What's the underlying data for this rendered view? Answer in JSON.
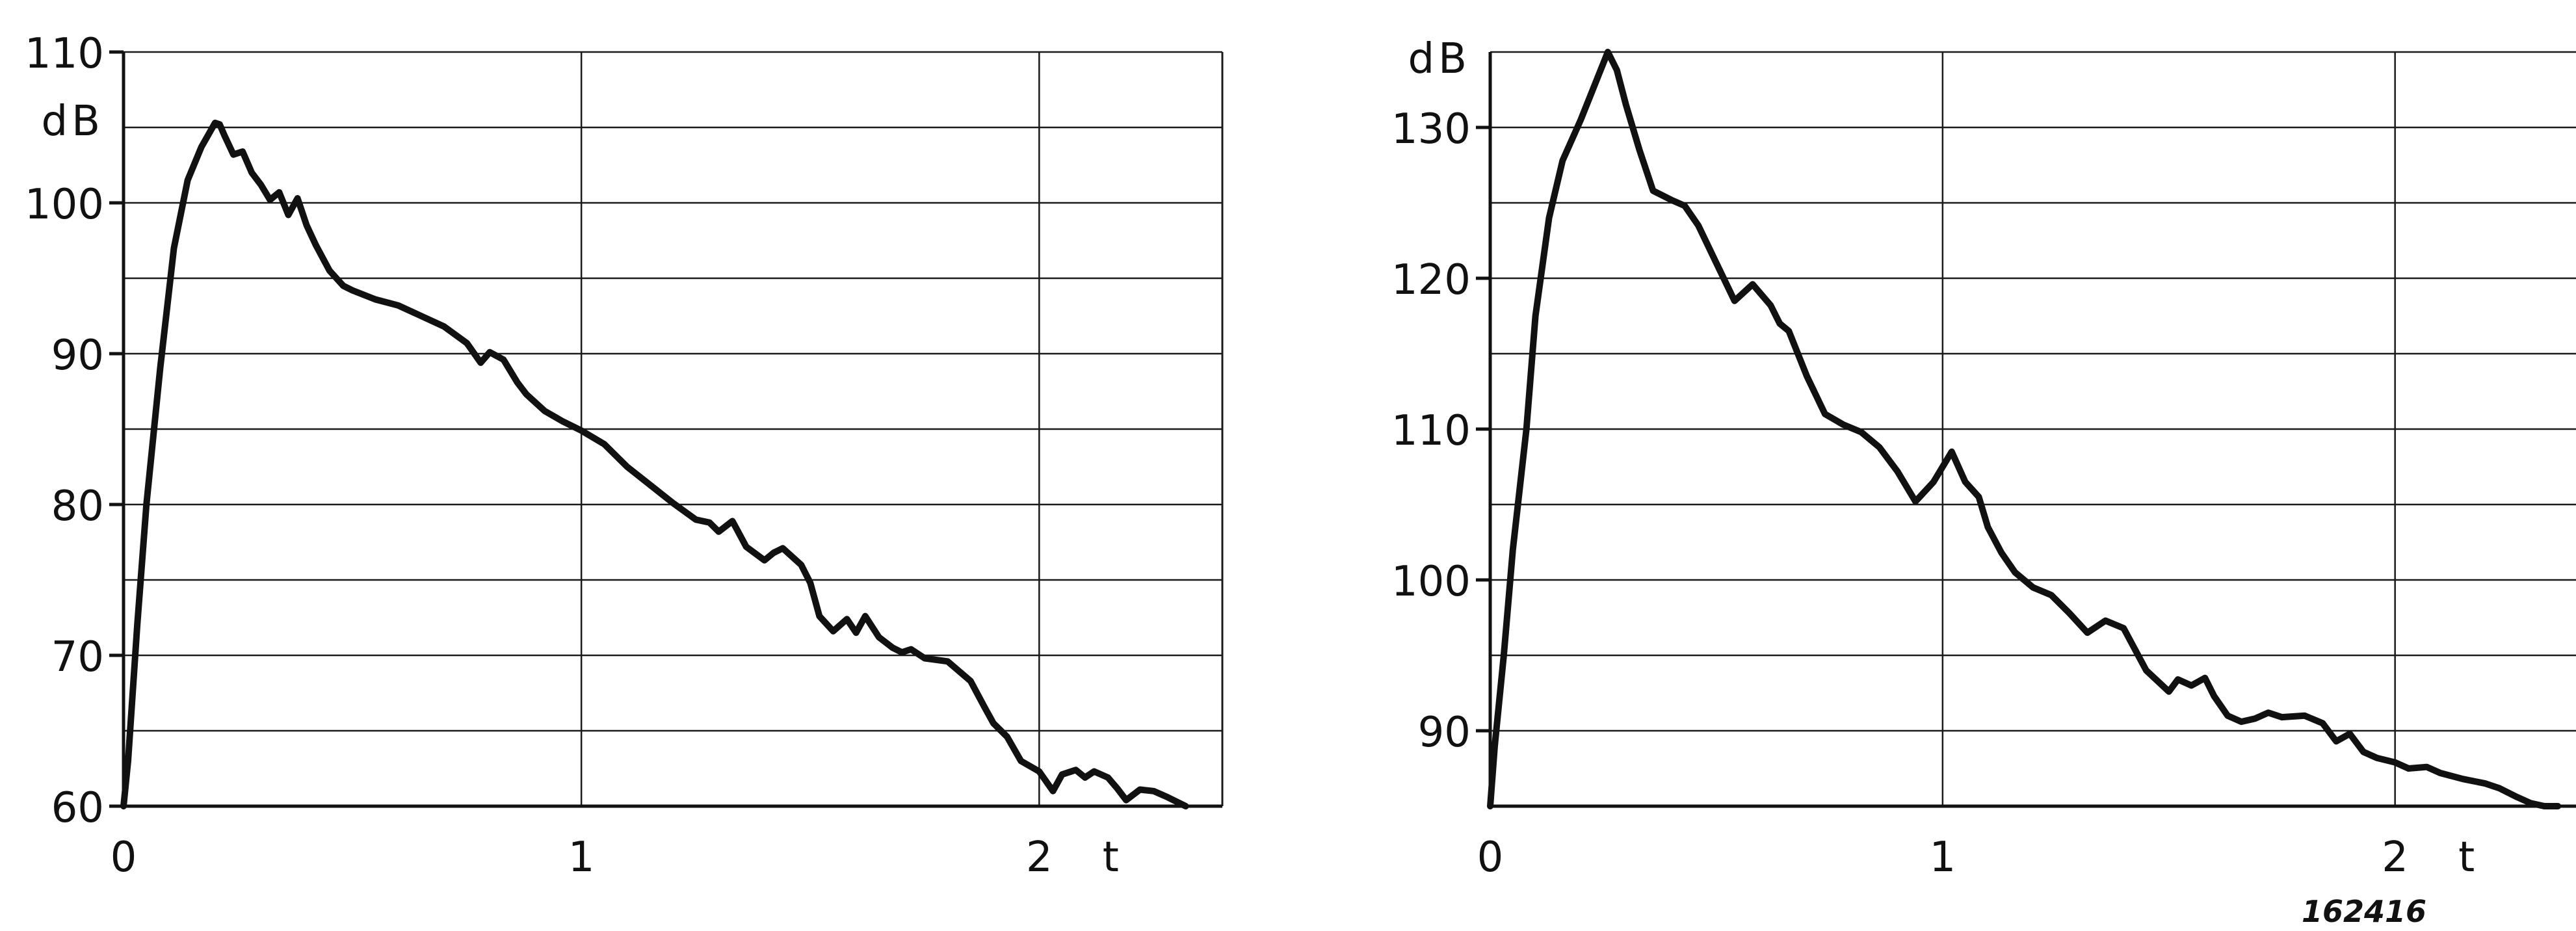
{
  "catalog_number": "162416",
  "chart_data": [
    {
      "type": "line",
      "title": "",
      "xlabel": "t",
      "ylabel": "dB",
      "xlim": [
        0,
        2.4
      ],
      "ylim": [
        60,
        110
      ],
      "x_ticks": [
        0,
        1,
        2
      ],
      "x_tick_labels": [
        "0",
        "1",
        "2"
      ],
      "y_ticks": [
        60,
        70,
        80,
        90,
        100,
        110
      ],
      "y_tick_labels": [
        "60",
        "70",
        "80",
        "90",
        "100",
        "110"
      ],
      "y_unit_label": "dB",
      "y_unit_below_tick": 110,
      "grid": true,
      "grid_y_step": 5,
      "color": "#111111",
      "series": [
        {
          "x": [
            0,
            0.01,
            0.03,
            0.05,
            0.08,
            0.11,
            0.14,
            0.17,
            0.2,
            0.21,
            0.22,
            0.24,
            0.26,
            0.28,
            0.3,
            0.32,
            0.34,
            0.36,
            0.38,
            0.4,
            0.42,
            0.45,
            0.48,
            0.5,
            0.55,
            0.6,
            0.65,
            0.7,
            0.75,
            0.78,
            0.8,
            0.83,
            0.86,
            0.88,
            0.92,
            0.96,
            1.0,
            1.05,
            1.1,
            1.15,
            1.2,
            1.25,
            1.28,
            1.3,
            1.33,
            1.36,
            1.4,
            1.42,
            1.44,
            1.48,
            1.5,
            1.52,
            1.55,
            1.58,
            1.6,
            1.62,
            1.65,
            1.68,
            1.7,
            1.72,
            1.75,
            1.8,
            1.85,
            1.88,
            1.9,
            1.93,
            1.96,
            2.0,
            2.03,
            2.05,
            2.08,
            2.1,
            2.12,
            2.15,
            2.17,
            2.19,
            2.22,
            2.25,
            2.28,
            2.32
          ],
          "y": [
            60,
            63,
            72,
            80,
            89,
            97,
            101.5,
            103.7,
            105.3,
            105.2,
            104.5,
            103.2,
            103.4,
            102.0,
            101.2,
            100.2,
            100.7,
            99.2,
            100.3,
            98.5,
            97.2,
            95.5,
            94.5,
            94.2,
            93.6,
            93.2,
            92.5,
            91.8,
            90.7,
            89.4,
            90.1,
            89.6,
            88.1,
            87.3,
            86.2,
            85.5,
            84.9,
            84.0,
            82.5,
            81.3,
            80.1,
            79.0,
            78.8,
            78.2,
            78.9,
            77.2,
            76.3,
            76.8,
            77.1,
            76.0,
            74.8,
            72.6,
            71.6,
            72.4,
            71.5,
            72.6,
            71.2,
            70.5,
            70.2,
            70.4,
            69.8,
            69.6,
            68.3,
            66.6,
            65.5,
            64.6,
            63.0,
            62.3,
            61.0,
            62.1,
            62.4,
            61.9,
            62.3,
            61.9,
            61.2,
            60.4,
            61.1,
            61.0,
            60.6,
            60.0
          ]
        }
      ]
    },
    {
      "type": "line",
      "title": "",
      "xlabel": "t",
      "ylabel": "dB",
      "xlim": [
        0,
        2.4
      ],
      "ylim": [
        85,
        135
      ],
      "x_ticks": [
        0,
        1,
        2
      ],
      "x_tick_labels": [
        "0",
        "1",
        "2"
      ],
      "y_ticks": [
        90,
        100,
        110,
        120,
        130
      ],
      "y_tick_labels": [
        "90",
        "100",
        "110",
        "120",
        "130"
      ],
      "y_unit_label": "dB",
      "y_unit_above_tick": 130,
      "grid": true,
      "grid_y_step": 5,
      "color": "#111111",
      "series": [
        {
          "x": [
            0,
            0.01,
            0.03,
            0.05,
            0.08,
            0.1,
            0.13,
            0.16,
            0.2,
            0.24,
            0.26,
            0.28,
            0.3,
            0.33,
            0.36,
            0.4,
            0.43,
            0.46,
            0.5,
            0.54,
            0.58,
            0.62,
            0.64,
            0.66,
            0.7,
            0.74,
            0.78,
            0.82,
            0.86,
            0.9,
            0.94,
            0.98,
            1.02,
            1.05,
            1.08,
            1.1,
            1.13,
            1.16,
            1.2,
            1.24,
            1.28,
            1.32,
            1.36,
            1.4,
            1.45,
            1.5,
            1.52,
            1.55,
            1.58,
            1.6,
            1.63,
            1.66,
            1.69,
            1.72,
            1.75,
            1.8,
            1.84,
            1.87,
            1.9,
            1.93,
            1.96,
            2.0,
            2.03,
            2.07,
            2.1,
            2.15,
            2.2,
            2.23,
            2.27,
            2.3,
            2.33,
            2.36
          ],
          "y": [
            85,
            89,
            95,
            102,
            110,
            117.5,
            124,
            127.8,
            130.5,
            133.5,
            135,
            133.8,
            131.5,
            128.5,
            125.8,
            125.2,
            124.8,
            123.5,
            121,
            118.5,
            119.6,
            118.2,
            117.0,
            116.5,
            113.5,
            111.0,
            110.3,
            109.8,
            108.8,
            107.2,
            105.2,
            106.5,
            108.5,
            106.5,
            105.5,
            103.5,
            101.8,
            100.5,
            99.5,
            99.0,
            97.8,
            96.5,
            97.3,
            96.8,
            94.0,
            92.6,
            93.4,
            93.0,
            93.5,
            92.3,
            91.0,
            90.6,
            90.8,
            91.2,
            90.9,
            91.0,
            90.5,
            89.3,
            89.8,
            88.6,
            88.2,
            87.9,
            87.5,
            87.6,
            87.2,
            86.8,
            86.5,
            86.2,
            85.6,
            85.2,
            85.0,
            85.0
          ]
        }
      ]
    }
  ]
}
